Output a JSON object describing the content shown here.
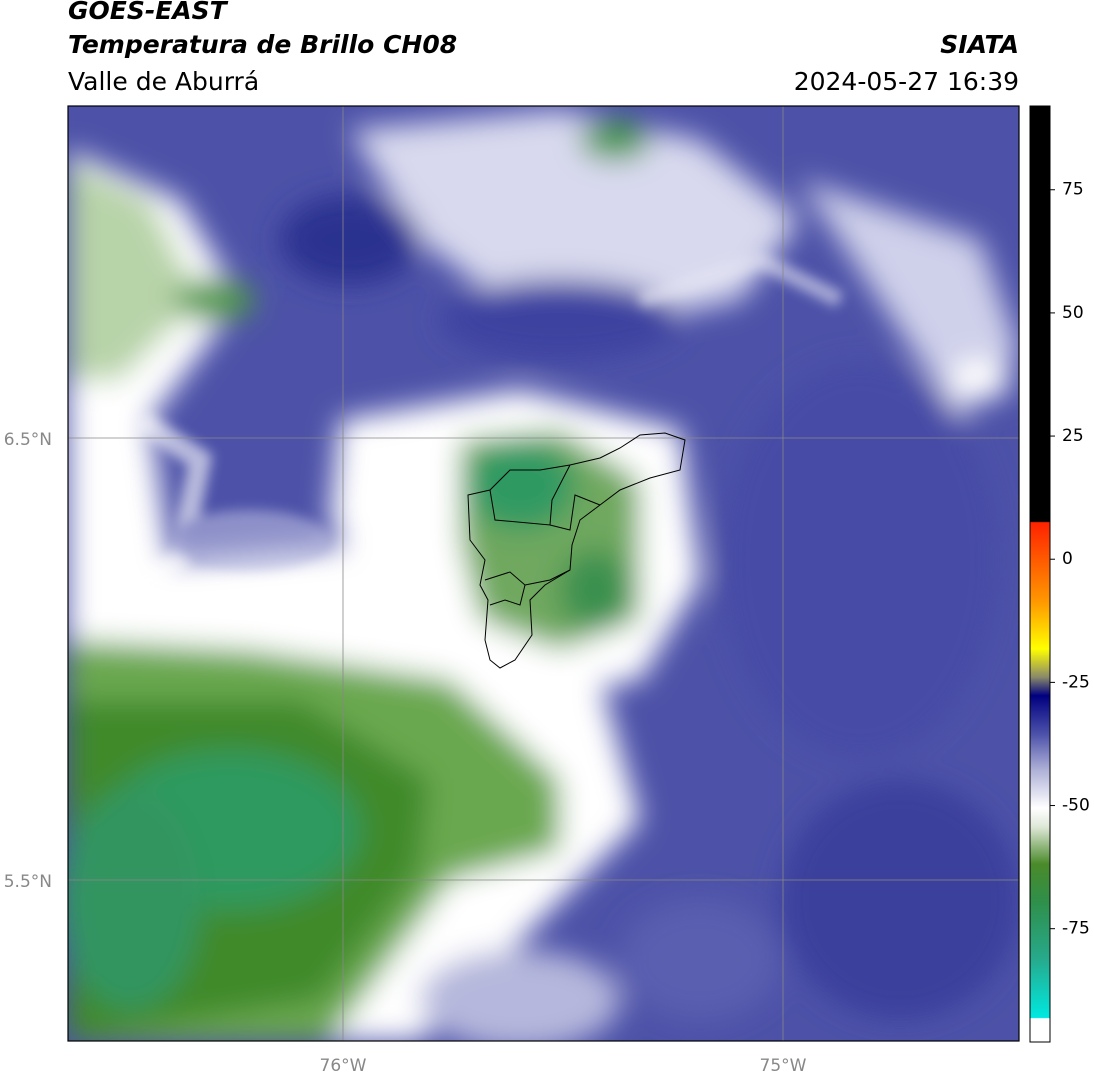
{
  "header": {
    "title": "GOES-EAST",
    "subtitle": "Temperatura de Brillo CH08",
    "region": "Valle de Aburrá",
    "source": "SIATA",
    "timestamp": "2024-05-27 16:39"
  },
  "map": {
    "lat_labels": [
      "6.5°N",
      "5.5°N"
    ],
    "lon_labels": [
      "76°W",
      "75°W"
    ]
  },
  "colorbar": {
    "range": [
      -98,
      92
    ],
    "ticks": [
      75,
      50,
      25,
      0,
      -25,
      -50,
      -75
    ]
  }
}
